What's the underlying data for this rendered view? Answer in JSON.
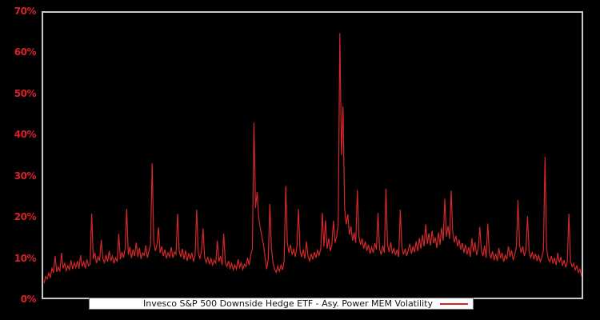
{
  "colors": {
    "background": "#000000",
    "series_line": "#d62728",
    "axis_label": "#da2128",
    "plot_border": "#c9c9c9",
    "legend_background": "#ffffff",
    "legend_text": "#111111"
  },
  "y_axis": {
    "tick_labels": [
      "0%",
      "10%",
      "20%",
      "30%",
      "40%",
      "50%",
      "60%",
      "70%"
    ],
    "tick_values": [
      0,
      10,
      20,
      30,
      40,
      50,
      60,
      70
    ]
  },
  "legend": {
    "label": "Invesco S&P 500 Downside Hedge ETF - Asy. Power MEM Volatility"
  },
  "chart_data": {
    "type": "line",
    "title": "",
    "xlabel": "",
    "ylabel": "",
    "ylim": [
      0,
      70
    ],
    "y_unit": "%",
    "grid": false,
    "x_axis_labels_visible": false,
    "legend_position": "bottom-inside",
    "series": [
      {
        "name": "Invesco S&P 500 Downside Hedge ETF - Asy. Power MEM Volatility",
        "color": "#d62728",
        "values": [
          3.5,
          5.2,
          4.6,
          6.0,
          5.0,
          7.2,
          6.1,
          10.2,
          6.3,
          7.5,
          6.4,
          11.0,
          7.2,
          8.4,
          6.6,
          7.8,
          6.9,
          9.2,
          7.0,
          8.6,
          7.4,
          9.0,
          7.1,
          10.4,
          7.6,
          8.8,
          7.2,
          9.4,
          7.8,
          8.2,
          20.6,
          9.5,
          11.0,
          8.5,
          10.0,
          9.0,
          14.2,
          9.6,
          8.6,
          10.5,
          8.8,
          11.5,
          9.0,
          10.2,
          8.4,
          9.8,
          8.8,
          15.7,
          9.4,
          11.2,
          9.8,
          12.0,
          21.8,
          10.5,
          12.5,
          9.7,
          11.8,
          10.2,
          13.5,
          10.0,
          12.2,
          9.5,
          11.0,
          10.4,
          12.8,
          9.8,
          11.5,
          13.0,
          33.0,
          14.0,
          11.5,
          13.0,
          17.2,
          11.0,
          12.6,
          10.2,
          11.8,
          9.6,
          11.0,
          10.0,
          12.4,
          9.8,
          11.2,
          10.6,
          20.6,
          11.4,
          10.0,
          12.0,
          9.4,
          11.6,
          9.0,
          10.8,
          9.6,
          11.0,
          8.8,
          10.4,
          21.6,
          11.0,
          9.5,
          11.5,
          17.0,
          9.8,
          8.6,
          10.0,
          8.2,
          9.6,
          8.0,
          9.2,
          8.4,
          14.0,
          8.8,
          10.2,
          8.0,
          15.7,
          8.6,
          7.6,
          9.0,
          7.2,
          8.4,
          6.8,
          8.0,
          7.0,
          9.4,
          7.4,
          8.6,
          6.9,
          8.2,
          7.6,
          9.8,
          8.0,
          10.5,
          12.0,
          43.0,
          22.0,
          26.0,
          19.5,
          17.0,
          15.0,
          13.0,
          10.0,
          7.0,
          9.5,
          23.0,
          12.0,
          8.5,
          7.0,
          6.2,
          7.8,
          6.5,
          8.0,
          6.8,
          9.0,
          27.4,
          13.5,
          11.0,
          13.0,
          10.5,
          12.0,
          10.0,
          12.5,
          21.8,
          11.5,
          10.0,
          11.8,
          9.6,
          13.8,
          10.2,
          9.0,
          10.8,
          9.4,
          11.2,
          9.8,
          11.6,
          10.4,
          12.0,
          20.8,
          12.5,
          19.0,
          12.0,
          14.5,
          11.5,
          13.0,
          18.9,
          13.5,
          15.0,
          18.0,
          65.0,
          35.0,
          47.0,
          22.0,
          18.0,
          20.5,
          15.5,
          17.5,
          14.0,
          16.0,
          13.5,
          26.4,
          15.0,
          13.0,
          14.5,
          12.0,
          13.8,
          11.5,
          13.0,
          10.8,
          12.4,
          11.0,
          13.4,
          11.8,
          20.8,
          12.0,
          10.5,
          12.8,
          11.0,
          26.8,
          13.0,
          11.2,
          13.6,
          10.8,
          12.2,
          10.4,
          11.8,
          10.0,
          21.6,
          12.4,
          10.6,
          12.0,
          10.2,
          11.6,
          13.2,
          10.8,
          12.6,
          11.2,
          13.8,
          11.4,
          14.6,
          12.0,
          15.4,
          12.6,
          18.0,
          13.2,
          15.8,
          12.8,
          16.4,
          13.4,
          14.8,
          12.2,
          16.0,
          13.0,
          17.2,
          14.0,
          24.3,
          15.0,
          17.6,
          14.4,
          26.3,
          16.0,
          13.6,
          15.2,
          12.6,
          14.2,
          11.8,
          13.4,
          11.0,
          13.0,
          10.6,
          12.4,
          10.0,
          14.6,
          11.2,
          13.6,
          10.4,
          12.0,
          17.4,
          11.6,
          10.2,
          12.8,
          9.8,
          18.2,
          11.0,
          9.6,
          11.4,
          9.2,
          10.8,
          9.0,
          12.2,
          9.6,
          11.0,
          8.8,
          10.4,
          9.4,
          12.6,
          10.0,
          11.6,
          9.2,
          10.6,
          12.4,
          24.0,
          13.0,
          11.0,
          12.6,
          10.2,
          11.8,
          20.0,
          11.4,
          9.8,
          11.2,
          9.4,
          10.8,
          9.0,
          10.4,
          8.8,
          10.0,
          11.5,
          34.6,
          12.0,
          9.6,
          8.8,
          10.2,
          8.4,
          9.8,
          8.0,
          11.0,
          8.6,
          10.0,
          7.8,
          9.2,
          7.4,
          8.8,
          20.6,
          9.0,
          7.6,
          8.4,
          6.8,
          7.8,
          6.2,
          7.0,
          5.2
        ]
      }
    ]
  }
}
